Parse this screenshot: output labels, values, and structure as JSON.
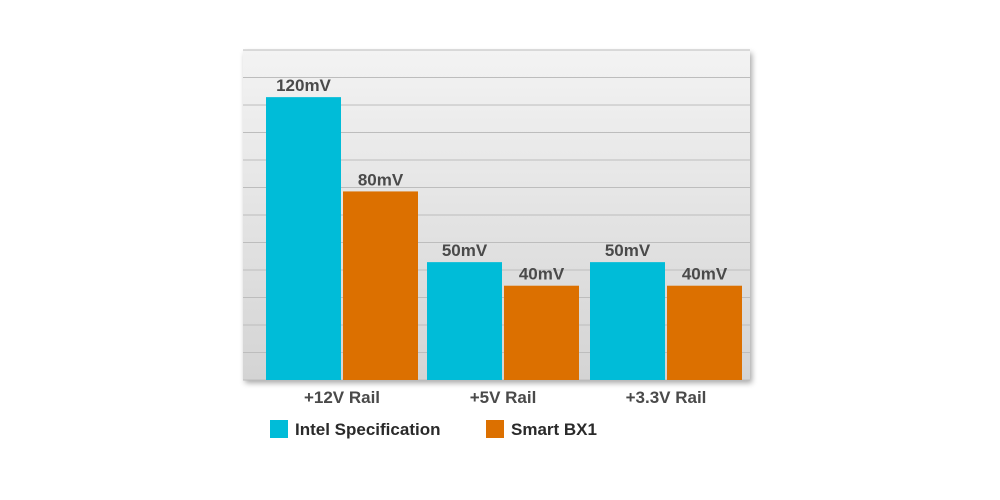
{
  "chart_data": {
    "type": "bar",
    "categories": [
      "+12V Rail",
      "+5V Rail",
      "+3.3V Rail"
    ],
    "series": [
      {
        "name": "Intel Specification",
        "color": "#00BCD8",
        "values": [
          120,
          50,
          50
        ],
        "labels": [
          "120mV",
          "50mV",
          "50mV"
        ]
      },
      {
        "name": "Smart BX1",
        "color": "#DC7000",
        "values": [
          80,
          40,
          40
        ],
        "labels": [
          "80mV",
          "40mV",
          "40mV"
        ]
      }
    ],
    "ylim": [
      0,
      140
    ],
    "grid": true,
    "legend_position": "bottom-left"
  }
}
